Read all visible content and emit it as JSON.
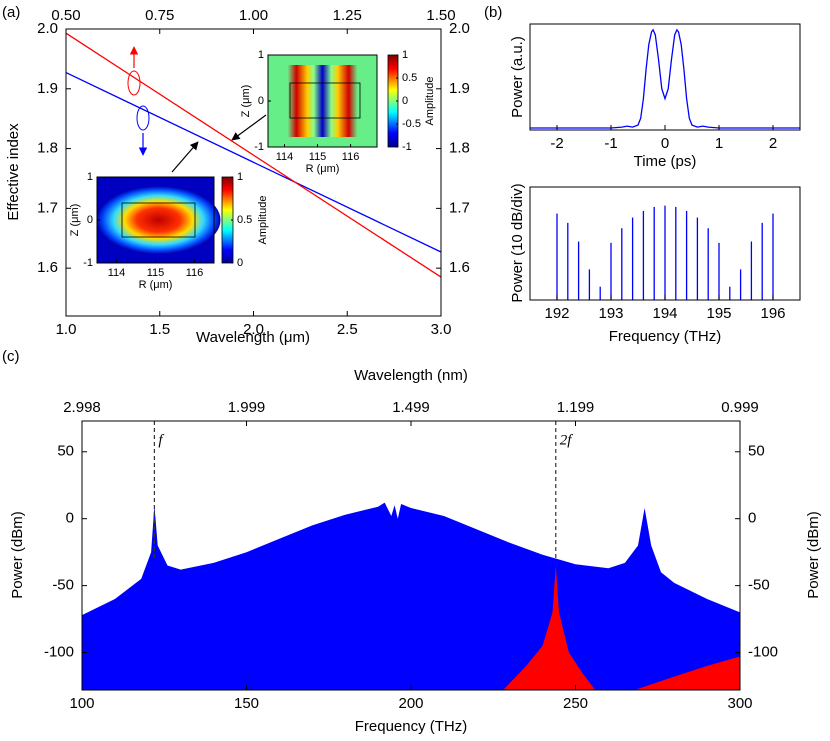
{
  "panel_labels": [
    "(a)",
    "(b)",
    "(c)"
  ],
  "chart_data": [
    {
      "type": "line",
      "xlabel": "Wavelength (μm)",
      "ylabel": "Effective index",
      "xlim": [
        1.0,
        3.0
      ],
      "xticks": [
        {
          "value": 1.0,
          "label": "1.0"
        },
        {
          "value": 1.5,
          "label": "1.5"
        },
        {
          "value": 2.0,
          "label": "2.0"
        },
        {
          "value": 2.5,
          "label": "2.5"
        },
        {
          "value": 3.0,
          "label": "3.0"
        }
      ],
      "x2lim": [
        0.5,
        1.5
      ],
      "x2ticks": [
        {
          "value": 0.5,
          "label": "0.50"
        },
        {
          "value": 0.75,
          "label": "0.75"
        },
        {
          "value": 1.0,
          "label": "1.00"
        },
        {
          "value": 1.25,
          "label": "1.25"
        },
        {
          "value": 1.5,
          "label": "1.50"
        }
      ],
      "ylim": [
        1.52,
        2.0
      ],
      "yticks": [
        1.6,
        1.7,
        1.8,
        1.9,
        {
          "value": 2.0,
          "label": "2.0"
        }
      ],
      "y2lim": [
        1.52,
        2.0
      ],
      "y2ticks": [
        1.6,
        1.7,
        1.8,
        1.9,
        {
          "value": 2.0,
          "label": "2.0"
        }
      ],
      "series": [
        {
          "color": "#0000ff",
          "x": [
            1.0,
            3.0
          ],
          "values": [
            1.927,
            1.627
          ]
        },
        {
          "color": "#ff0000",
          "axis": "y2",
          "xaxis": "x2",
          "x": [
            0.5,
            1.5
          ],
          "values": [
            1.993,
            1.585
          ]
        }
      ],
      "insets": [
        {
          "xlabel": "R (μm)",
          "ylabel": "Z (μm)",
          "colorbar_label": "Amplitude",
          "xlim": [
            113.5,
            116.8
          ],
          "xticks": [
            114,
            115,
            116
          ],
          "ylim": [
            -1,
            1
          ],
          "yticks": [
            -1,
            0,
            1
          ],
          "clim": [
            -1,
            1
          ],
          "cticks": [
            -1,
            -0.5,
            0,
            0.5,
            1
          ]
        },
        {
          "xlabel": "R (μm)",
          "ylabel": "Z (μm)",
          "colorbar_label": "Amplitude",
          "xlim": [
            113.5,
            116.5
          ],
          "xticks": [
            114,
            115,
            116
          ],
          "ylim": [
            -1,
            1
          ],
          "yticks": [
            -1,
            0,
            1
          ],
          "clim": [
            0,
            1
          ],
          "cticks": [
            0,
            0.5,
            1
          ]
        }
      ]
    },
    {
      "type": "line",
      "xlabel": "Time (ps)",
      "ylabel": "Power (a.u.)",
      "xlim": [
        -2.5,
        2.5
      ],
      "xticks": [
        -2,
        -1,
        0,
        1,
        2
      ],
      "ylim": [
        -0.02,
        1.06
      ],
      "series": [
        {
          "color": "#0000ff",
          "x": [
            -2.5,
            -1.0,
            -0.8,
            -0.7,
            -0.6,
            -0.5,
            -0.45,
            -0.4,
            -0.35,
            -0.3,
            -0.25,
            -0.22,
            -0.18,
            -0.12,
            -0.06,
            0,
            0.06,
            0.12,
            0.18,
            0.22,
            0.25,
            0.3,
            0.35,
            0.4,
            0.45,
            0.5,
            0.6,
            0.7,
            0.8,
            1.0,
            2.5
          ],
          "values": [
            0,
            0,
            0.01,
            0.02,
            0.01,
            0.03,
            0.1,
            0.3,
            0.6,
            0.85,
            0.98,
            1.0,
            0.95,
            0.7,
            0.4,
            0.3,
            0.4,
            0.7,
            0.95,
            1.0,
            0.98,
            0.85,
            0.6,
            0.3,
            0.1,
            0.03,
            0.01,
            0.02,
            0.01,
            0,
            0
          ]
        }
      ]
    },
    {
      "type": "stem",
      "xlabel": "Frequency (THz)",
      "ylabel": "Power (10 dB/div)",
      "xlim": [
        191.5,
        196.5
      ],
      "xticks": [
        192,
        193,
        194,
        195,
        196
      ],
      "ylim": [
        0,
        8.5
      ],
      "series": [
        {
          "color": "#0000ff",
          "x": [
            192.0,
            192.2,
            192.4,
            192.6,
            192.8,
            193.0,
            193.2,
            193.4,
            193.6,
            193.8,
            194.0,
            194.2,
            194.4,
            194.6,
            194.8,
            195.0,
            195.2,
            195.4,
            195.6,
            195.8,
            196.0
          ],
          "values": [
            6.5,
            5.8,
            4.4,
            2.3,
            1.0,
            4.3,
            5.4,
            6.2,
            6.7,
            7.0,
            7.1,
            7.0,
            6.7,
            6.2,
            5.4,
            4.3,
            1.0,
            2.3,
            4.4,
            5.8,
            6.5
          ]
        }
      ]
    },
    {
      "type": "area",
      "xlabel": "Frequency (THz)",
      "x2label": "Wavelength (nm)",
      "ylabel": "Power (dBm)",
      "y2label": "Power (dBm)",
      "xlim": [
        100,
        300
      ],
      "xticks": [
        100,
        150,
        200,
        250,
        300
      ],
      "x2ticks": [
        {
          "value": 100,
          "label": "2.998"
        },
        {
          "value": 150,
          "label": "1.999"
        },
        {
          "value": 200,
          "label": "1.499"
        },
        {
          "value": 250,
          "label": "1.199"
        },
        {
          "value": 300,
          "label": "0.999"
        }
      ],
      "ylim": [
        -128,
        73
      ],
      "yticks": [
        -100,
        -50,
        0,
        50
      ],
      "y2lim": [
        -128,
        73
      ],
      "y2ticks": [
        -100,
        -50,
        0,
        50
      ],
      "series": [
        {
          "color": "#0000ff",
          "x": [
            100,
            110,
            118,
            121,
            122,
            123,
            126,
            130,
            140,
            150,
            160,
            170,
            180,
            190,
            192,
            194,
            195,
            196,
            197,
            200,
            210,
            220,
            230,
            240,
            250,
            260,
            265,
            269,
            271,
            273,
            276,
            280,
            290,
            300
          ],
          "values": [
            -72,
            -60,
            -45,
            -25,
            10,
            -20,
            -35,
            -38,
            -33,
            -25,
            -15,
            -5,
            3,
            9,
            12,
            2,
            10,
            0,
            11,
            8,
            2,
            -8,
            -18,
            -27,
            -34,
            -37,
            -33,
            -20,
            8,
            -20,
            -40,
            -48,
            -60,
            -70
          ]
        },
        {
          "color": "#ff0000",
          "axis": "y2",
          "x": [
            228,
            235,
            240,
            243,
            244,
            245,
            248,
            252,
            256,
            null,
            268,
            280,
            290,
            300
          ],
          "values": [
            -128,
            -110,
            -95,
            -70,
            -35,
            -70,
            -100,
            -115,
            -128,
            null,
            -128,
            -118,
            -110,
            -103
          ]
        }
      ],
      "annotations": [
        {
          "text": "f",
          "x": 122
        },
        {
          "text": "2f",
          "x": 244
        }
      ]
    }
  ]
}
